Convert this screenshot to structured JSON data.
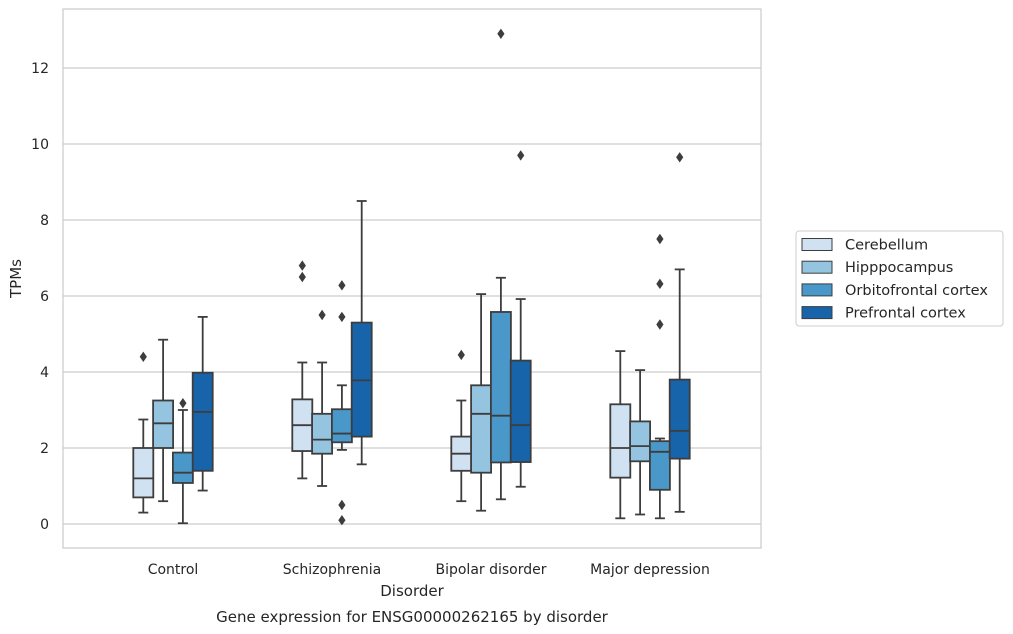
{
  "chart_data": {
    "type": "box",
    "title": "Gene expression for ENSG00000262165 by disorder",
    "xlabel": "Disorder",
    "ylabel": "TPMs",
    "ylim": [
      -0.6,
      13.6
    ],
    "yticks": [
      0,
      2,
      4,
      6,
      8,
      10,
      12
    ],
    "grid": true,
    "legend_position": "right",
    "categories": [
      "Control",
      "Schizophrenia",
      "Bipolar disorder",
      "Major depression"
    ],
    "series": [
      {
        "name": "Cerebellum",
        "color": "#d0e1f2",
        "boxes": [
          {
            "whisker_low": 0.3,
            "q1": 0.7,
            "median": 1.2,
            "q3": 2.0,
            "whisker_high": 2.75,
            "outliers": [
              4.4
            ]
          },
          {
            "whisker_low": 1.2,
            "q1": 1.92,
            "median": 2.6,
            "q3": 3.28,
            "whisker_high": 4.25,
            "outliers": [
              6.5,
              6.8
            ]
          },
          {
            "whisker_low": 0.6,
            "q1": 1.4,
            "median": 1.85,
            "q3": 2.3,
            "whisker_high": 3.25,
            "outliers": [
              4.45
            ]
          },
          {
            "whisker_low": 0.15,
            "q1": 1.22,
            "median": 2.0,
            "q3": 3.15,
            "whisker_high": 4.55,
            "outliers": []
          }
        ]
      },
      {
        "name": "Hipppocampus",
        "color": "#94c4df",
        "boxes": [
          {
            "whisker_low": 0.6,
            "q1": 2.0,
            "median": 2.65,
            "q3": 3.25,
            "whisker_high": 4.85,
            "outliers": []
          },
          {
            "whisker_low": 1.0,
            "q1": 1.85,
            "median": 2.22,
            "q3": 2.9,
            "whisker_high": 4.25,
            "outliers": [
              5.5
            ]
          },
          {
            "whisker_low": 0.35,
            "q1": 1.35,
            "median": 2.9,
            "q3": 3.65,
            "whisker_high": 6.05,
            "outliers": []
          },
          {
            "whisker_low": 0.25,
            "q1": 1.65,
            "median": 2.05,
            "q3": 2.7,
            "whisker_high": 4.05,
            "outliers": []
          }
        ]
      },
      {
        "name": "Orbitofrontal cortex",
        "color": "#4a98c9",
        "boxes": [
          {
            "whisker_low": 0.02,
            "q1": 1.08,
            "median": 1.35,
            "q3": 1.88,
            "whisker_high": 3.0,
            "outliers": [
              3.18
            ]
          },
          {
            "whisker_low": 1.95,
            "q1": 2.15,
            "median": 2.38,
            "q3": 3.02,
            "whisker_high": 3.65,
            "outliers": [
              6.28,
              5.45,
              0.5,
              0.1
            ]
          },
          {
            "whisker_low": 0.65,
            "q1": 1.62,
            "median": 2.85,
            "q3": 5.58,
            "whisker_high": 6.48,
            "outliers": [
              12.9
            ]
          },
          {
            "whisker_low": 0.15,
            "q1": 0.9,
            "median": 1.9,
            "q3": 2.18,
            "whisker_high": 2.25,
            "outliers": [
              7.5,
              6.32,
              5.25
            ]
          }
        ]
      },
      {
        "name": "Prefrontal cortex",
        "color": "#1764ab",
        "boxes": [
          {
            "whisker_low": 0.88,
            "q1": 1.4,
            "median": 2.95,
            "q3": 3.98,
            "whisker_high": 5.45,
            "outliers": []
          },
          {
            "whisker_low": 1.57,
            "q1": 2.3,
            "median": 3.78,
            "q3": 5.3,
            "whisker_high": 8.5,
            "outliers": []
          },
          {
            "whisker_low": 0.98,
            "q1": 1.63,
            "median": 2.6,
            "q3": 4.3,
            "whisker_high": 5.92,
            "outliers": [
              9.7
            ]
          },
          {
            "whisker_low": 0.32,
            "q1": 1.72,
            "median": 2.45,
            "q3": 3.8,
            "whisker_high": 6.7,
            "outliers": [
              9.65
            ]
          }
        ]
      }
    ]
  }
}
